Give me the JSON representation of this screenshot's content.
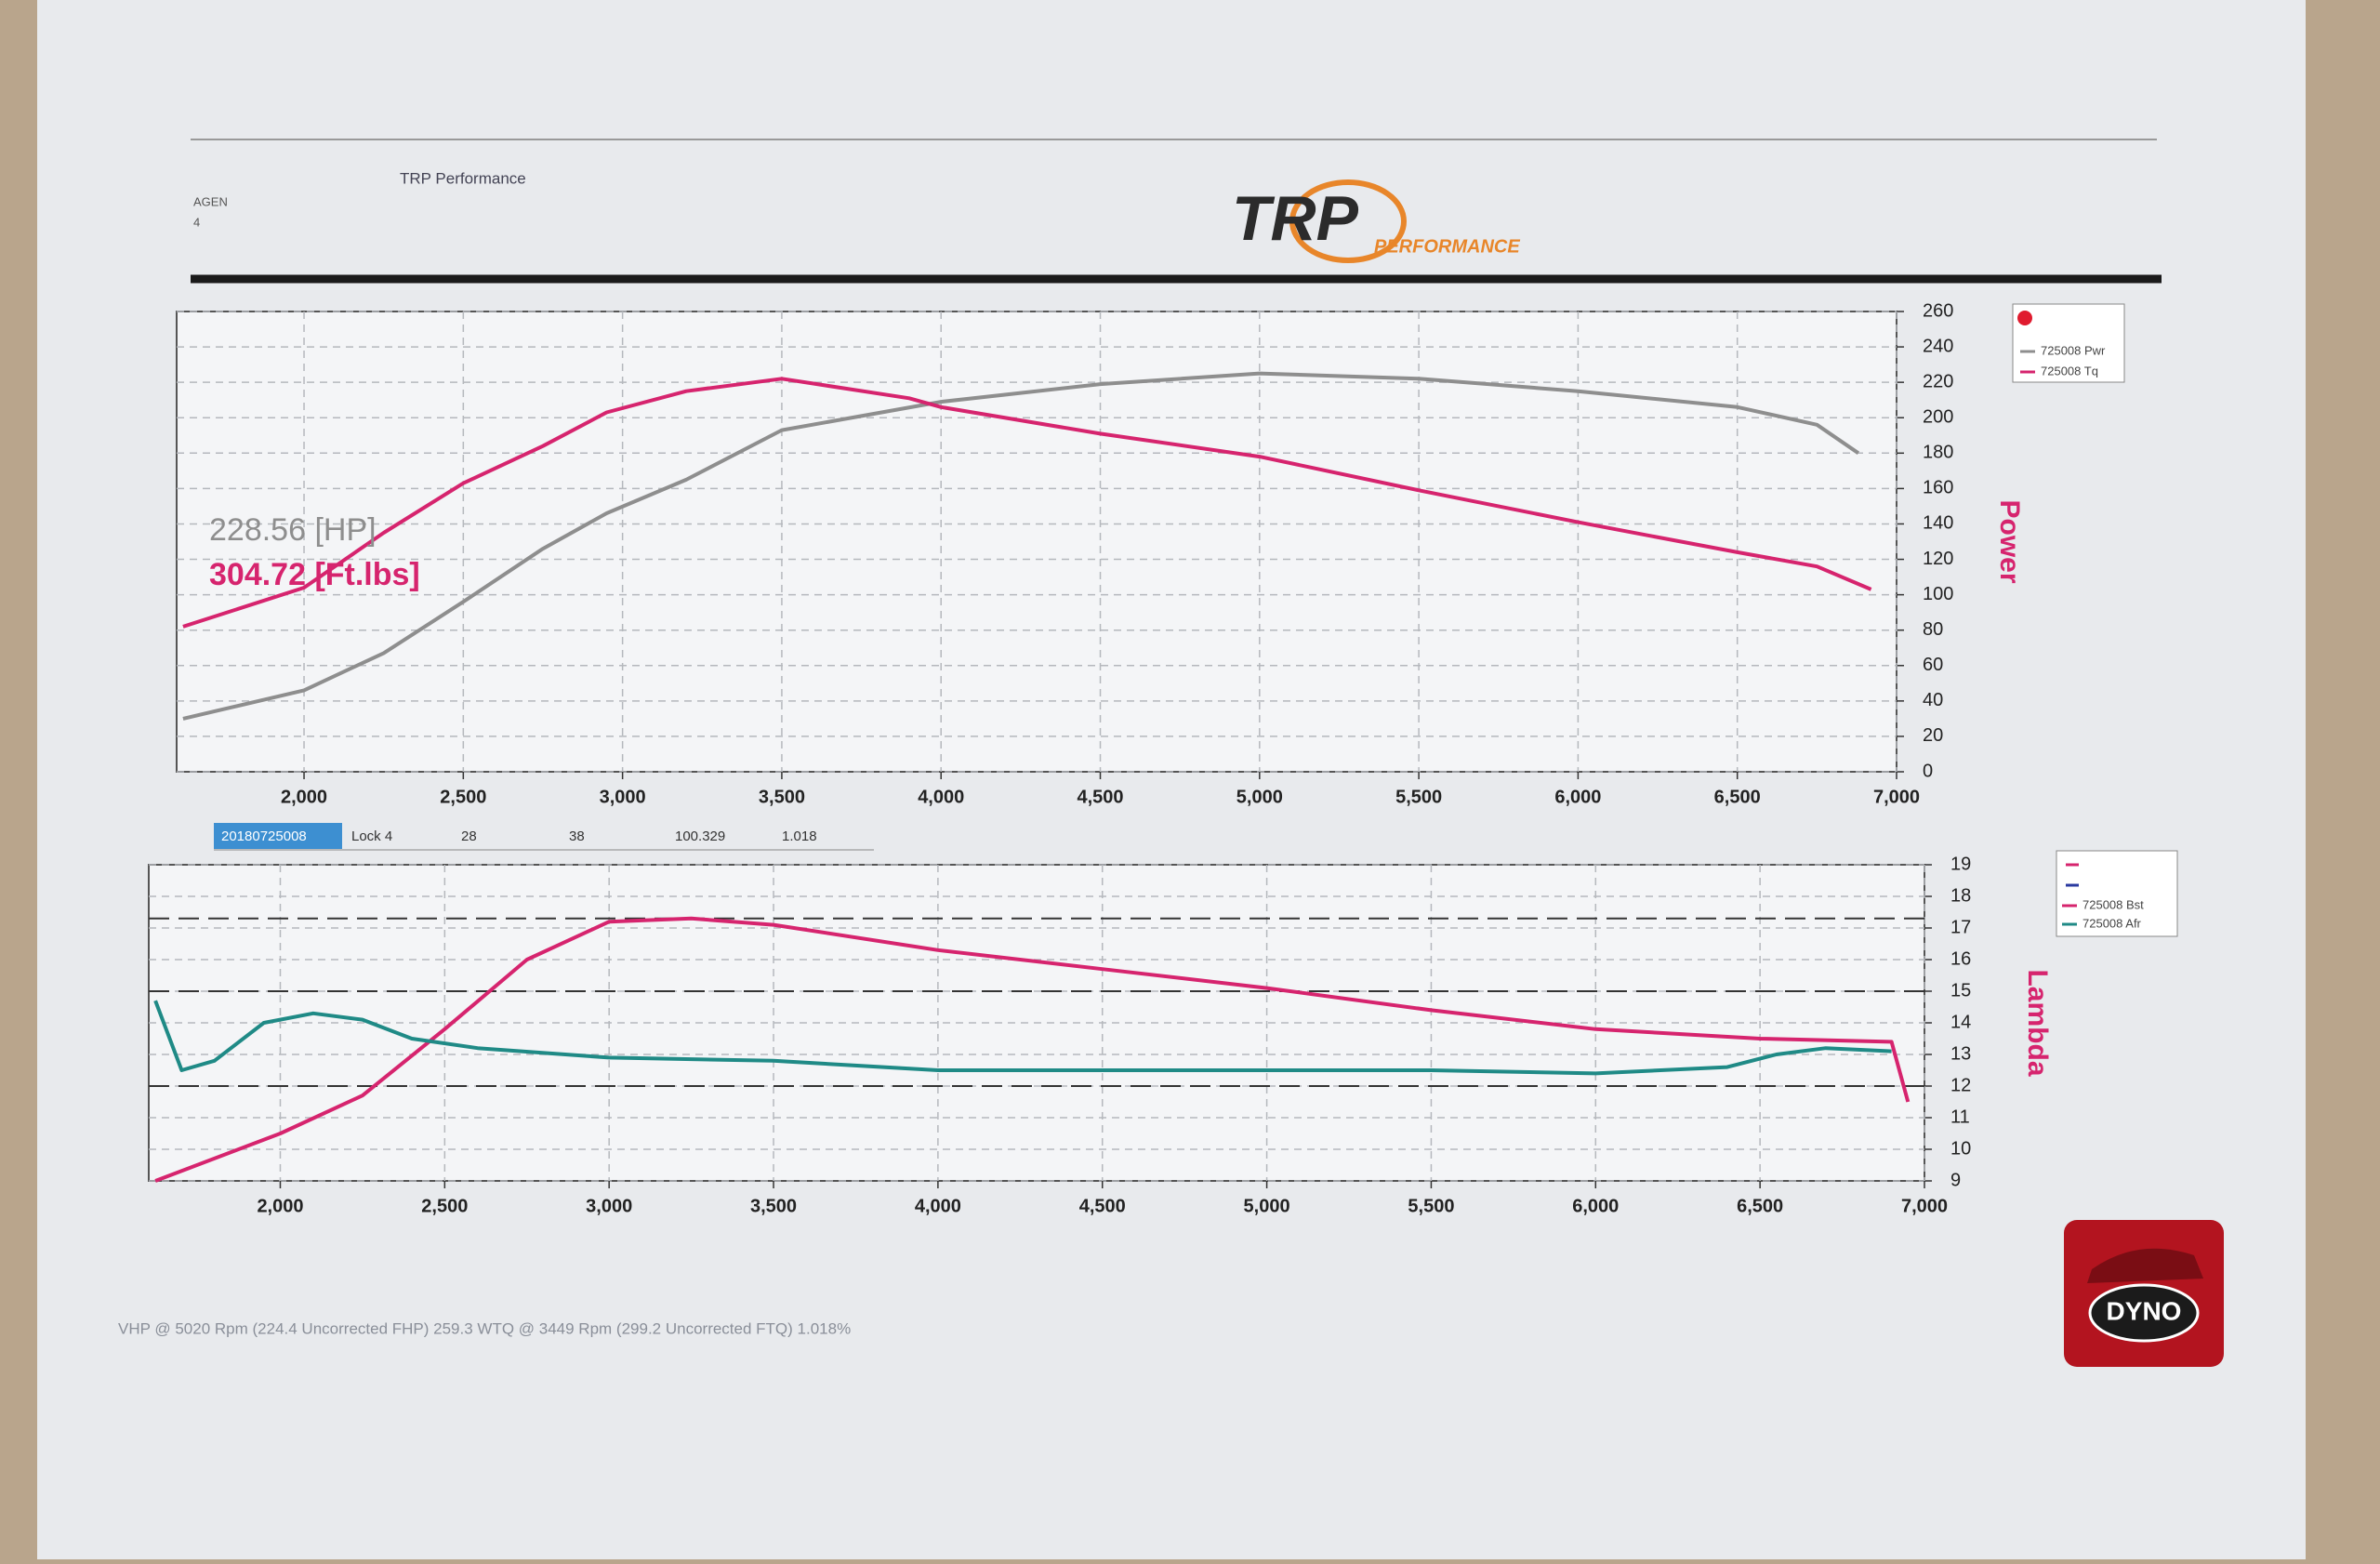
{
  "header": {
    "company": "TRP Performance",
    "vehicle": "AGEN",
    "vehicle_line2": "4",
    "logo": "TRP",
    "logo_sub": "PERFORMANCE"
  },
  "chart_data": [
    {
      "type": "line",
      "y_label": "Power",
      "annotations": [
        "228.56 [HP]",
        "304.72 [Ft.lbs]"
      ],
      "xlim": [
        1600,
        7000
      ],
      "xticks": [
        {
          "value": 2000,
          "label": "2,000"
        },
        {
          "value": 2500,
          "label": "2,500"
        },
        {
          "value": 3000,
          "label": "3,000"
        },
        {
          "value": 3500,
          "label": "3,500"
        },
        {
          "value": 4000,
          "label": "4,000"
        },
        {
          "value": 4500,
          "label": "4,500"
        },
        {
          "value": 5000,
          "label": "5,000"
        },
        {
          "value": 5500,
          "label": "5,500"
        },
        {
          "value": 6000,
          "label": "6,000"
        },
        {
          "value": 6500,
          "label": "6,500"
        },
        {
          "value": 7000,
          "label": "7,000"
        }
      ],
      "ylim": [
        0,
        260
      ],
      "yticks": [
        0,
        20,
        40,
        60,
        80,
        100,
        120,
        140,
        160,
        180,
        200,
        220,
        240,
        260
      ],
      "grid": true,
      "series": [
        {
          "name": "725008 Pwr",
          "color": "#8e8e8e",
          "x": [
            1620,
            2000,
            2250,
            2500,
            2750,
            2950,
            3200,
            3500,
            4000,
            4500,
            5000,
            5500,
            6000,
            6500,
            6750,
            6880
          ],
          "values": [
            30,
            46,
            67,
            96,
            126,
            146,
            165,
            193,
            209,
            219,
            225,
            222,
            215,
            206,
            196,
            180
          ]
        },
        {
          "name": "725008 Tq",
          "color": "#d6246e",
          "x": [
            1620,
            2000,
            2250,
            2500,
            2750,
            2950,
            3200,
            3500,
            3900,
            4000,
            4500,
            5000,
            5500,
            6000,
            6500,
            6750,
            6920
          ],
          "values": [
            82,
            104,
            135,
            163,
            184,
            203,
            215,
            222,
            211,
            206,
            191,
            178,
            159,
            141,
            124,
            116,
            103
          ]
        }
      ]
    },
    {
      "type": "line",
      "y_label": "Lambda",
      "xlim": [
        1600,
        7000
      ],
      "xticks": [
        {
          "value": 2000,
          "label": "2,000"
        },
        {
          "value": 2500,
          "label": "2,500"
        },
        {
          "value": 3000,
          "label": "3,000"
        },
        {
          "value": 3500,
          "label": "3,500"
        },
        {
          "value": 4000,
          "label": "4,000"
        },
        {
          "value": 4500,
          "label": "4,500"
        },
        {
          "value": 5000,
          "label": "5,000"
        },
        {
          "value": 5500,
          "label": "5,500"
        },
        {
          "value": 6000,
          "label": "6,000"
        },
        {
          "value": 6500,
          "label": "6,500"
        },
        {
          "value": 7000,
          "label": "7,000"
        }
      ],
      "ylim": [
        9,
        19
      ],
      "yticks": [
        9,
        10,
        11,
        12,
        13,
        14,
        15,
        16,
        17,
        18,
        19
      ],
      "grid": true,
      "reference_lines": [
        17.3,
        15,
        12
      ],
      "series": [
        {
          "name": "725008 Bst",
          "color": "#d6246e",
          "x": [
            1620,
            2000,
            2250,
            2500,
            2750,
            3000,
            3250,
            3500,
            4000,
            4500,
            5000,
            5500,
            6000,
            6500,
            6900,
            6950
          ],
          "values": [
            9,
            10.5,
            11.7,
            13.8,
            16,
            17.2,
            17.3,
            17.1,
            16.3,
            15.7,
            15.1,
            14.4,
            13.8,
            13.5,
            13.4,
            11.5
          ]
        },
        {
          "name": "725008 Afr",
          "color": "#1f8a86",
          "x": [
            1620,
            1700,
            1800,
            1950,
            2100,
            2250,
            2400,
            2600,
            3000,
            3500,
            4000,
            4500,
            5000,
            5500,
            6000,
            6400,
            6550,
            6700,
            6900
          ],
          "values": [
            14.7,
            12.5,
            12.8,
            14,
            14.3,
            14.1,
            13.5,
            13.2,
            12.9,
            12.8,
            12.5,
            12.5,
            12.5,
            12.5,
            12.4,
            12.6,
            13,
            13.2,
            13.1
          ]
        }
      ]
    }
  ],
  "run_info": [
    "20180725008",
    "Lock 4",
    "28",
    "38",
    "100.329",
    "1.018"
  ],
  "footer": "VHP @ 5020 Rpm (224.4 Uncorrected FHP) 259.3 WTQ @ 3449 Rpm (299.2 Uncorrected FTQ) 1.018%",
  "badge": "DYNO"
}
